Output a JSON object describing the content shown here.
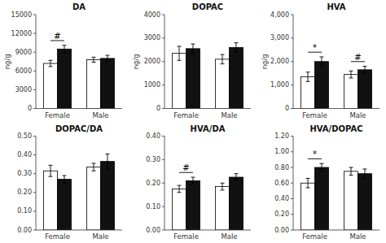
{
  "chart_data": [
    {
      "type": "bar",
      "title": "DA",
      "ylabel": "ng/g",
      "grid": false,
      "categories": [
        "Female",
        "Male"
      ],
      "series": [
        {
          "color": "#ffffff",
          "values": [
            7200,
            7800
          ],
          "errors": [
            500,
            400
          ]
        },
        {
          "color": "#111111",
          "values": [
            9500,
            8000
          ],
          "errors": [
            600,
            500
          ]
        }
      ],
      "ylim": [
        0,
        15000
      ],
      "yticks": [
        0,
        3000,
        6000,
        9000,
        12000,
        15000
      ],
      "annotations": [
        {
          "text": "#",
          "category": "Female"
        }
      ]
    },
    {
      "type": "bar",
      "title": "DOPAC",
      "ylabel": "ng/g",
      "grid": false,
      "categories": [
        "Female",
        "Male"
      ],
      "series": [
        {
          "color": "#ffffff",
          "values": [
            2350,
            2100
          ],
          "errors": [
            300,
            200
          ]
        },
        {
          "color": "#111111",
          "values": [
            2550,
            2600
          ],
          "errors": [
            200,
            200
          ]
        }
      ],
      "ylim": [
        0,
        4000
      ],
      "yticks": [
        0,
        1000,
        2000,
        3000,
        4000
      ]
    },
    {
      "type": "bar",
      "title": "HVA",
      "ylabel": "ng/g",
      "grid": false,
      "categories": [
        "Female",
        "Male"
      ],
      "series": [
        {
          "color": "#ffffff",
          "values": [
            1350,
            1450
          ],
          "errors": [
            200,
            150
          ]
        },
        {
          "color": "#111111",
          "values": [
            2000,
            1650
          ],
          "errors": [
            200,
            150
          ]
        }
      ],
      "ylim": [
        0,
        4000
      ],
      "yticks": [
        0,
        {
          "value": 1000,
          "label": "1,000"
        },
        {
          "value": 2000,
          "label": "2,000"
        },
        {
          "value": 3000,
          "label": "3,000"
        },
        {
          "value": 4000,
          "label": "4,000"
        }
      ],
      "annotations": [
        {
          "text": "*",
          "category": "Female"
        },
        {
          "text": "#",
          "category": "Male"
        }
      ]
    },
    {
      "type": "bar",
      "title": "DOPAC/DA",
      "grid": false,
      "categories": [
        "Female",
        "Male"
      ],
      "series": [
        {
          "color": "#ffffff",
          "values": [
            0.315,
            0.335
          ],
          "errors": [
            0.03,
            0.02
          ]
        },
        {
          "color": "#111111",
          "values": [
            0.27,
            0.365
          ],
          "errors": [
            0.02,
            0.04
          ]
        }
      ],
      "ylim": [
        0,
        0.5
      ],
      "yticks": [
        {
          "value": 0,
          "label": "0.00"
        },
        {
          "value": 0.1,
          "label": "0.10"
        },
        {
          "value": 0.2,
          "label": "0.20"
        },
        {
          "value": 0.3,
          "label": "0.30"
        },
        {
          "value": 0.4,
          "label": "0.40"
        },
        {
          "value": 0.5,
          "label": "0.50"
        }
      ]
    },
    {
      "type": "bar",
      "title": "HVA/DA",
      "grid": false,
      "categories": [
        "Female",
        "Male"
      ],
      "series": [
        {
          "color": "#ffffff",
          "values": [
            0.175,
            0.185
          ],
          "errors": [
            0.015,
            0.015
          ]
        },
        {
          "color": "#111111",
          "values": [
            0.21,
            0.225
          ],
          "errors": [
            0.015,
            0.015
          ]
        }
      ],
      "ylim": [
        0,
        0.4
      ],
      "yticks": [
        {
          "value": 0,
          "label": "0.00"
        },
        {
          "value": 0.1,
          "label": "0.10"
        },
        {
          "value": 0.2,
          "label": "0.20"
        },
        {
          "value": 0.3,
          "label": "0.30"
        },
        {
          "value": 0.4,
          "label": "0.40"
        }
      ],
      "annotations": [
        {
          "text": "#",
          "category": "Female"
        }
      ]
    },
    {
      "type": "bar",
      "title": "HVA/DOPAC",
      "grid": false,
      "categories": [
        "Female",
        "Male"
      ],
      "series": [
        {
          "color": "#ffffff",
          "values": [
            0.6,
            0.75
          ],
          "errors": [
            0.06,
            0.05
          ]
        },
        {
          "color": "#111111",
          "values": [
            0.8,
            0.72
          ],
          "errors": [
            0.05,
            0.06
          ]
        }
      ],
      "ylim": [
        0,
        1.2
      ],
      "yticks": [
        {
          "value": 0,
          "label": "0.00"
        },
        {
          "value": 0.2,
          "label": "0.20"
        },
        {
          "value": 0.4,
          "label": "0.40"
        },
        {
          "value": 0.6,
          "label": "0.60"
        },
        {
          "value": 0.8,
          "label": "0.80"
        },
        {
          "value": 1.0,
          "label": "1.00"
        },
        {
          "value": 1.2,
          "label": "1.20"
        }
      ],
      "annotations": [
        {
          "text": "*",
          "category": "Female"
        }
      ]
    }
  ]
}
